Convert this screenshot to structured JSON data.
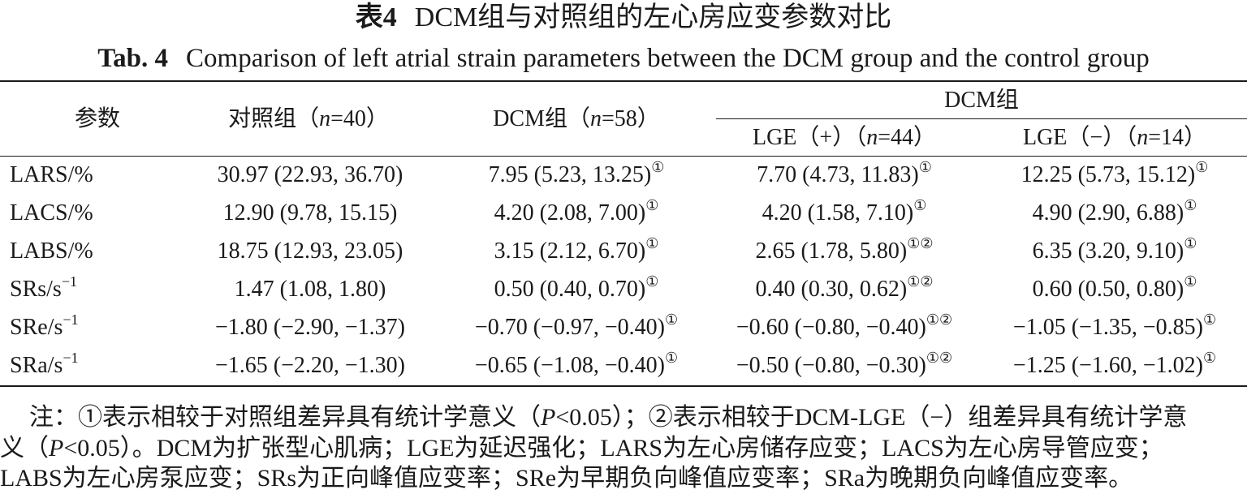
{
  "title_cn": {
    "label": "表4",
    "text": "DCM组与对照组的左心房应变参数对比"
  },
  "title_en": {
    "label": "Tab. 4",
    "text": "Comparison of left atrial strain parameters between the DCM group and the control group"
  },
  "headers": {
    "param": "参数",
    "control": "对照组（n=40）",
    "dcm": "DCM组（n=58）",
    "dcm_group": "DCM组",
    "lge_pos": "LGE（+）（n=44）",
    "lge_neg": "LGE（−）（n=14）"
  },
  "rows": [
    {
      "label": "LARS/%",
      "control": "30.97 (22.93, 36.70)",
      "dcm": "7.95 (5.23, 13.25)",
      "dcm_mark": "①",
      "pos": "7.70 (4.73, 11.83)",
      "pos_mark": "①",
      "neg": "12.25 (5.73, 15.12)",
      "neg_mark": "①"
    },
    {
      "label": "LACS/%",
      "control": "12.90 (9.78, 15.15)",
      "dcm": "4.20 (2.08, 7.00)",
      "dcm_mark": "①",
      "pos": "4.20 (1.58, 7.10)",
      "pos_mark": "①",
      "neg": "4.90 (2.90, 6.88)",
      "neg_mark": "①"
    },
    {
      "label": "LABS/%",
      "control": "18.75 (12.93, 23.05)",
      "dcm": "3.15 (2.12, 6.70)",
      "dcm_mark": "①",
      "pos": "2.65 (1.78, 5.80)",
      "pos_mark": "①②",
      "neg": "6.35 (3.20, 9.10)",
      "neg_mark": "①"
    },
    {
      "label": "SRs/s",
      "label_sup": "−1",
      "control": "1.47 (1.08, 1.80)",
      "dcm": "0.50 (0.40, 0.70)",
      "dcm_mark": "①",
      "pos": "0.40 (0.30, 0.62)",
      "pos_mark": "①②",
      "neg": "0.60 (0.50, 0.80)",
      "neg_mark": "①"
    },
    {
      "label": "SRe/s",
      "label_sup": "−1",
      "control": "−1.80 (−2.90, −1.37)",
      "dcm": "−0.70 (−0.97, −0.40)",
      "dcm_mark": "①",
      "pos": "−0.60 (−0.80, −0.40)",
      "pos_mark": "①②",
      "neg": "−1.05 (−1.35, −0.85)",
      "neg_mark": "①"
    },
    {
      "label": "SRa/s",
      "label_sup": "−1",
      "control": "−1.65 (−2.20, −1.30)",
      "dcm": "−0.65 (−1.08, −0.40)",
      "dcm_mark": "①",
      "pos": "−0.50 (−0.80, −0.30)",
      "pos_mark": "①②",
      "neg": "−1.25 (−1.60, −1.02)",
      "neg_mark": "①"
    }
  ],
  "notes": [
    "注：①表示相较于对照组差异具有统计学意义（P<0.05）；②表示相较于DCM-LGE（−）组差异具有统计学意",
    "义（P<0.05）。DCM为扩张型心肌病；LGE为延迟强化；LARS为左心房储存应变；LACS为左心房导管应变；",
    "LABS为左心房泵应变；SRs为正向峰值应变率；SRe为早期负向峰值应变率；SRa为晚期负向峰值应变率。"
  ]
}
